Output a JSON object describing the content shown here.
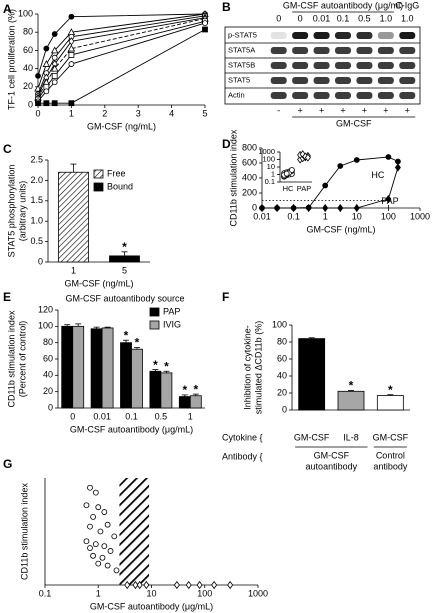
{
  "blot": {
    "panel": "B",
    "header": "GM-CSF autoantibody (μg/ml)",
    "control": "C-IgG",
    "lanes": [
      "0",
      "0",
      "0.01",
      "0.1",
      "0.5",
      "1.0",
      "1.0"
    ],
    "rows": [
      "p-STAT5",
      "STAT5A",
      "STAT5B",
      "STAT5",
      "Actin"
    ],
    "treatment": [
      "-",
      "+",
      "+",
      "+",
      "+",
      "+",
      "+"
    ],
    "treatment_label": "GM-CSF"
  },
  "chart_data": [
    {
      "panel": "A",
      "type": "line",
      "ylabel": "TF-1 cell proliferation (%)",
      "xlabel": "GM-CSF (ng/mL)",
      "x": [
        0,
        0.25,
        0.5,
        1,
        5
      ],
      "xlim": [
        0,
        5
      ],
      "xticks": [
        0,
        1,
        2,
        3,
        4,
        5
      ],
      "ylim": [
        0,
        100
      ],
      "yticks": [
        0,
        20,
        40,
        60,
        80,
        100
      ],
      "color": "#000000",
      "series": [
        {
          "marker": "circle",
          "values": [
            32,
            62,
            78,
            97,
            100
          ]
        },
        {
          "marker": "triangle-open",
          "values": [
            18,
            45,
            60,
            80,
            100
          ]
        },
        {
          "marker": "circle-open",
          "values": [
            12,
            35,
            52,
            75,
            98
          ]
        },
        {
          "marker": "diamond-open",
          "values": [
            10,
            30,
            45,
            70,
            96
          ]
        },
        {
          "marker": "triangle-open",
          "dash": true,
          "values": [
            8,
            25,
            40,
            62,
            95
          ]
        },
        {
          "marker": "square-open",
          "values": [
            6,
            20,
            32,
            55,
            92
          ]
        },
        {
          "marker": "circle-open",
          "values": [
            4,
            15,
            25,
            45,
            90
          ]
        },
        {
          "marker": "square",
          "values": [
            2,
            2,
            2,
            2,
            83
          ]
        }
      ]
    },
    {
      "panel": "C",
      "type": "bar",
      "ylabel": [
        "STAT5 phosphorylation",
        "(arbitrary units)"
      ],
      "xlabel": "GM-CSF (ng/mL)",
      "categories": [
        "1",
        "5"
      ],
      "ylim": [
        0,
        2.5
      ],
      "yticks": [
        0,
        0.5,
        {
          "value": 1,
          "label": "1.0"
        },
        1.5,
        {
          "value": 2,
          "label": "2.0"
        },
        2.5
      ],
      "series": [
        {
          "name": "Free",
          "pattern": "hatch",
          "color": "#000000",
          "values": [
            2.2,
            null
          ],
          "errors": [
            0.2,
            null
          ]
        },
        {
          "name": "Bound",
          "color": "#000000",
          "values": [
            null,
            0.15
          ],
          "errors": [
            null,
            0.1
          ],
          "annotations": [
            null,
            "*"
          ]
        }
      ]
    },
    {
      "panel": "D",
      "type": "line",
      "xscale": "log",
      "ylabel": "CD11b stimulation index",
      "xlabel": "GM-CSF (ng/mL)",
      "x": [
        0.01,
        0.03,
        0.1,
        0.3,
        1,
        3,
        10,
        100,
        200
      ],
      "xlim": [
        0.01,
        1000
      ],
      "xticks": [
        0.01,
        0.1,
        1,
        10,
        100,
        1000
      ],
      "ylim": [
        0,
        800
      ],
      "yticks": [
        0,
        200,
        400,
        600,
        800
      ],
      "hlines": [
        100
      ],
      "vlines": [
        100
      ],
      "color": "#000000",
      "series": [
        {
          "name": "HC",
          "marker": "circle",
          "values": [
            0,
            0,
            0,
            5,
            300,
            560,
            640,
            680,
            620
          ]
        },
        {
          "name": "PAP",
          "marker": "diamond",
          "values": [
            0,
            0,
            0,
            0,
            0,
            0,
            0,
            120,
            540
          ]
        }
      ]
    },
    {
      "type": "strip",
      "yscale": "log",
      "categories": [
        "HC",
        "PAP"
      ],
      "ylim": [
        0.1,
        1000
      ],
      "yticks": [
        0.1,
        1,
        10,
        100,
        1000
      ],
      "series": [
        {
          "marker": "circle-open",
          "values": [
            0.5,
            0.8,
            1,
            1.2,
            1.5,
            2,
            2.5,
            3,
            0.6,
            1,
            1.8,
            4,
            0.9,
            1.3
          ]
        },
        {
          "marker": "diamond-open",
          "values": [
            100,
            150,
            200,
            300,
            400,
            500,
            250,
            180
          ]
        }
      ]
    },
    {
      "panel": "E",
      "type": "bar",
      "legend_title": "GM-CSF autoantibody source",
      "ylabel": [
        "CD11b stimulation index",
        "(Percent of control)"
      ],
      "xlabel": "GM-CSF autoantibody (μg/mL)",
      "categories": [
        "0",
        "0.01",
        "0.1",
        "0.5",
        "1"
      ],
      "ylim": [
        0,
        120
      ],
      "yticks": [
        0,
        20,
        40,
        60,
        80,
        100,
        120
      ],
      "series": [
        {
          "name": "PAP",
          "color": "#000000",
          "values": [
            100,
            97,
            80,
            45,
            14
          ],
          "errors": [
            2,
            2,
            3,
            2,
            2
          ],
          "annotations": [
            null,
            null,
            "*",
            "*",
            "*"
          ]
        },
        {
          "name": "IVIG",
          "color": "#a6a6a6",
          "values": [
            100,
            98,
            72,
            43,
            15
          ],
          "errors": [
            3,
            1,
            2,
            2,
            2
          ],
          "annotations": [
            null,
            null,
            "*",
            "*",
            "*"
          ]
        }
      ]
    },
    {
      "panel": "F",
      "type": "bar",
      "ylabel": [
        "Inhibition of cytokine-",
        "stimulated ΔCD11b (%)"
      ],
      "categories": [
        "GM-CSF",
        "IL-8",
        "GM-CSF"
      ],
      "category_label": "Cytokine {",
      "groups_label": "Antibody {",
      "groups": [
        [
          "GM-CSF",
          "autoantibody"
        ],
        [
          "Control",
          "antibody"
        ]
      ],
      "ylim": [
        0,
        100
      ],
      "yticks": [
        0,
        20,
        40,
        60,
        80,
        100
      ],
      "series": [
        {
          "colors": [
            "#000000",
            "#a6a6a6",
            "#ffffff"
          ],
          "values": [
            84,
            22,
            17
          ],
          "errors": [
            1,
            1,
            1
          ],
          "annotations": [
            null,
            "*",
            "*"
          ]
        }
      ]
    },
    {
      "panel": "G",
      "type": "scatter",
      "xscale": "log",
      "ylabel": "CD11b stimulation index",
      "xlabel": "GM-CSF autoantibody (μg/mL)",
      "xlim": [
        0.1,
        1000
      ],
      "xticks": [
        0.1,
        1,
        10,
        100,
        1000
      ],
      "ylim": [
        0,
        1.1
      ],
      "band": [
        2.5,
        9
      ],
      "series": [
        {
          "marker": "circle-open",
          "x": [
            0.7,
            0.9,
            0.6,
            1.0,
            1.3,
            0.8,
            1.5,
            0.7,
            1.1,
            2,
            0.6,
            0.9,
            1.3,
            1.7,
            0.8,
            1.2,
            1.0,
            1.5,
            2.2,
            0.7
          ],
          "values": [
            1.0,
            0.95,
            0.82,
            0.8,
            0.75,
            0.7,
            0.62,
            0.6,
            0.55,
            0.5,
            0.45,
            0.42,
            0.4,
            0.35,
            0.3,
            0.28,
            0.22,
            0.2,
            0.15,
            0.38
          ]
        },
        {
          "marker": "diamond-open",
          "x": [
            3.5,
            5,
            6,
            8,
            30,
            50,
            80,
            150,
            300
          ],
          "values": [
            0,
            0,
            0,
            0,
            0,
            0,
            0,
            0,
            0
          ]
        }
      ]
    }
  ]
}
